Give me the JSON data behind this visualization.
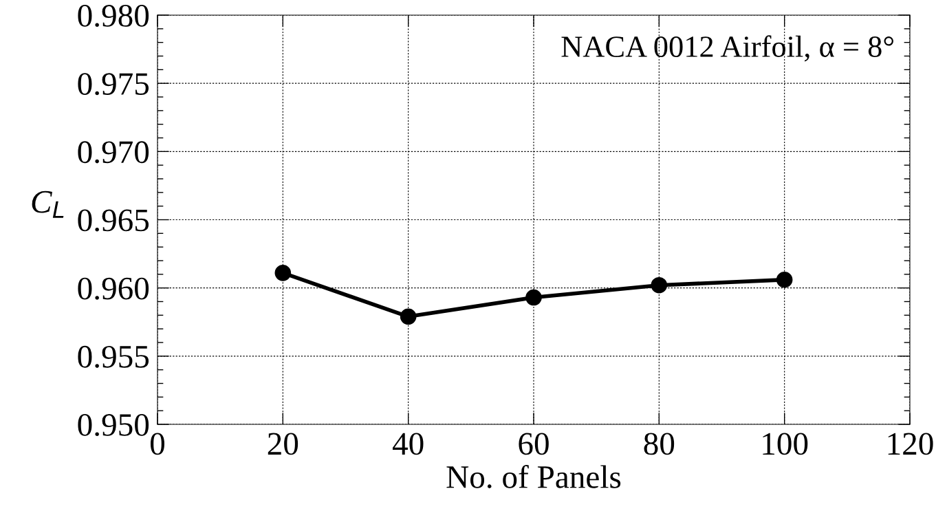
{
  "chart_data": {
    "type": "line",
    "xlabel": "No. of Panels",
    "ylabel": "C$_{L}$",
    "annotations": [
      "NACA 0012 Airfoil, α = 8°"
    ],
    "x": [
      20,
      40,
      60,
      80,
      100
    ],
    "series": [
      {
        "color": "#000000",
        "values": [
          0.9611,
          0.9579,
          0.9593,
          0.9602,
          0.9606
        ]
      }
    ],
    "xlim": [
      0,
      120
    ],
    "xticks": [
      0,
      20,
      40,
      60,
      80,
      100,
      120
    ],
    "ylim": [
      0.95,
      0.98
    ],
    "yticks": [
      {
        "value": 0.95,
        "label": "0.950"
      },
      {
        "value": 0.955,
        "label": "0.955"
      },
      {
        "value": 0.96,
        "label": "0.960"
      },
      {
        "value": 0.965,
        "label": "0.965"
      },
      {
        "value": 0.97,
        "label": "0.970"
      },
      {
        "value": 0.975,
        "label": "0.975"
      },
      {
        "value": 0.98,
        "label": "0.980"
      }
    ],
    "grid": true,
    "marker": "circle",
    "line_style": "solid"
  }
}
